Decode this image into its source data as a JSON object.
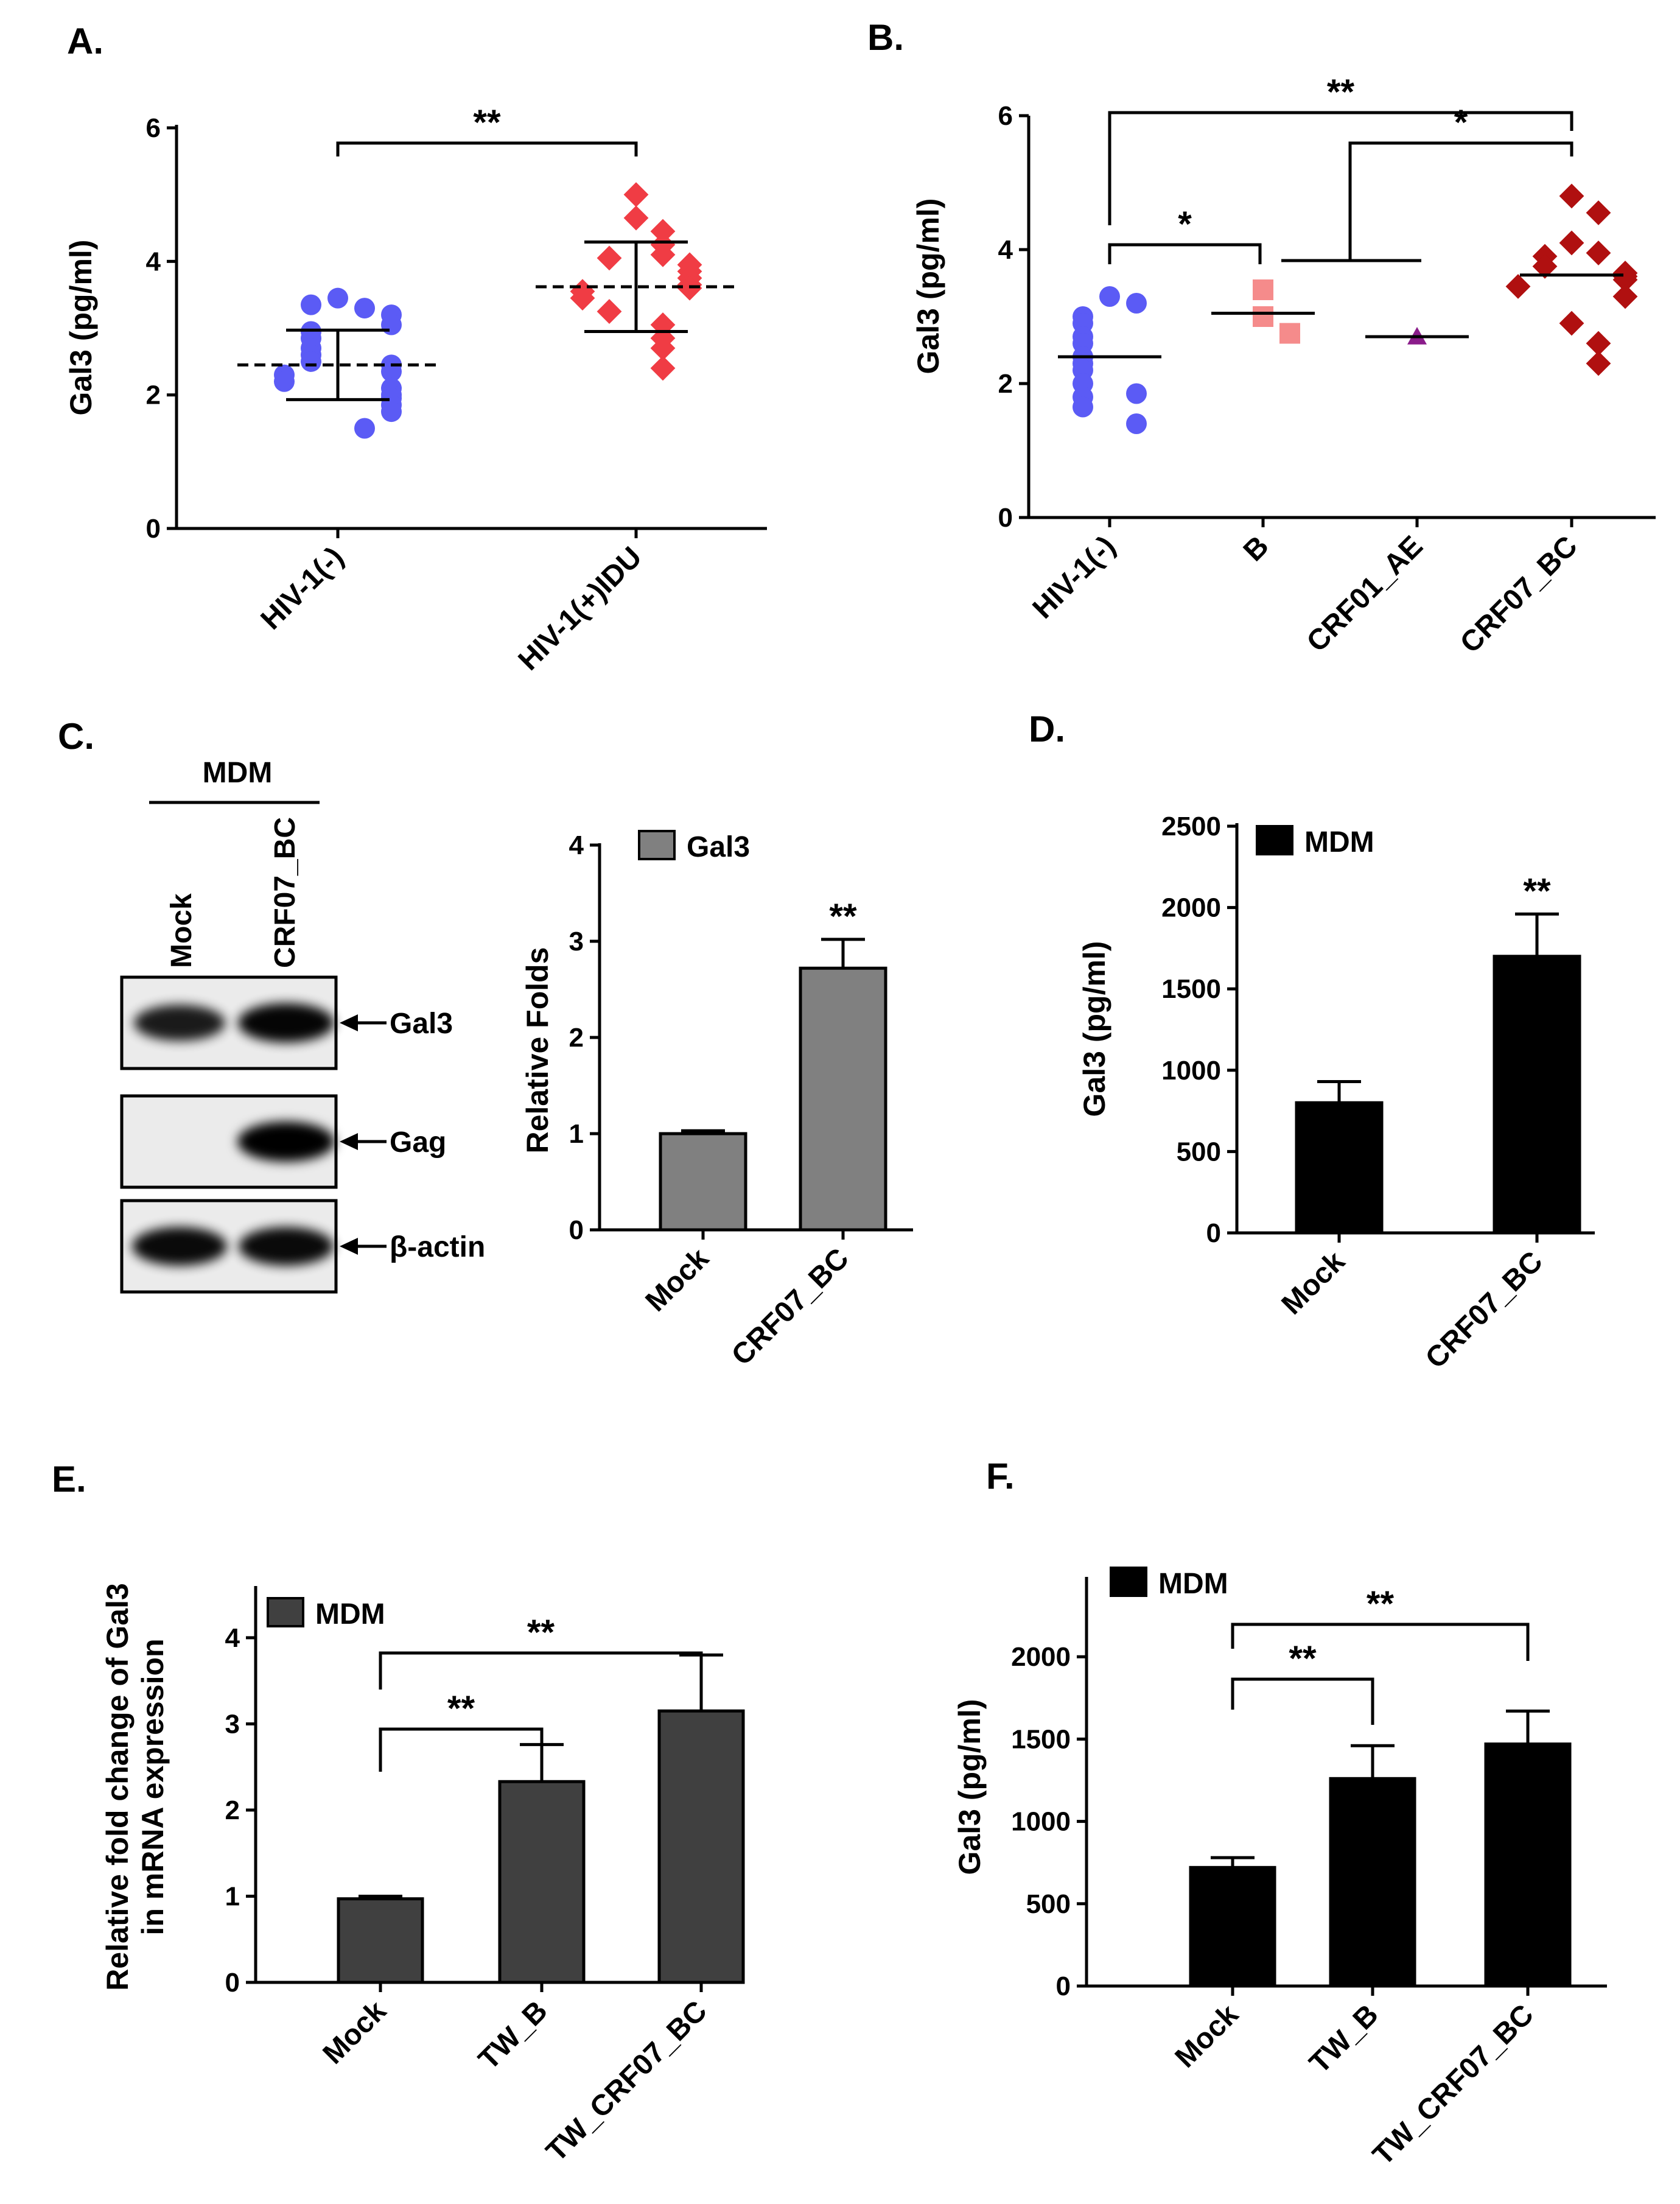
{
  "panel_labels": [
    "A.",
    "B.",
    "C.",
    "D.",
    "E.",
    "F."
  ],
  "chart_data": [
    {
      "id": "A",
      "type": "scatter",
      "ylabel": "Gal3 (pg/ml)",
      "ylim": [
        0,
        6
      ],
      "yticks": [
        0,
        2,
        4,
        6
      ],
      "categories": [
        "HIV-1(-)",
        "HIV-1(+)IDU"
      ],
      "groups": [
        {
          "name": "HIV-1(-)",
          "color": "#5b5bf5",
          "marker": "circle",
          "mean": 2.45,
          "sd": 0.52,
          "values": [
            3.45,
            3.3,
            3.35,
            3.2,
            3.05,
            2.95,
            2.85,
            2.7,
            2.6,
            2.5,
            2.45,
            2.35,
            2.3,
            2.2,
            2.1,
            2.0,
            1.95,
            1.85,
            1.75,
            1.5
          ]
        },
        {
          "name": "HIV-1(+)IDU",
          "color": "#f03c44",
          "marker": "diamond",
          "mean": 3.62,
          "sd": 0.67,
          "values": [
            5.0,
            4.65,
            4.45,
            4.25,
            4.1,
            4.05,
            3.95,
            3.85,
            3.75,
            3.65,
            3.6,
            3.55,
            3.45,
            3.25,
            3.05,
            2.85,
            2.7,
            2.4
          ]
        }
      ],
      "significance": [
        {
          "from": 0,
          "to": 1,
          "label": "**"
        }
      ]
    },
    {
      "id": "B",
      "type": "scatter",
      "ylabel": "Gal3 (pg/ml)",
      "ylim": [
        0,
        6
      ],
      "yticks": [
        0,
        2,
        4,
        6
      ],
      "categories": [
        "HIV-1(-)",
        "B",
        "CRF01_AE",
        "CRF07_BC"
      ],
      "groups": [
        {
          "name": "HIV-1(-)",
          "color": "#5b5bf5",
          "marker": "circle",
          "mean": 2.4,
          "values": [
            3.3,
            3.2,
            3.0,
            2.9,
            2.7,
            2.6,
            2.4,
            2.3,
            2.2,
            2.0,
            1.85,
            1.8,
            1.65,
            1.4
          ]
        },
        {
          "name": "B",
          "color": "#f58b8b",
          "marker": "square",
          "mean": 3.05,
          "values": [
            3.4,
            3.0,
            2.75
          ]
        },
        {
          "name": "CRF01_AE",
          "color": "#8a1c8a",
          "marker": "triangle",
          "mean": 2.7,
          "values": [
            2.7
          ]
        },
        {
          "name": "CRF07_BC",
          "color": "#b01010",
          "marker": "diamond",
          "mean": 3.62,
          "values": [
            4.8,
            4.55,
            4.1,
            3.95,
            3.9,
            3.75,
            3.65,
            3.6,
            3.55,
            3.45,
            3.3,
            2.9,
            2.6,
            2.3
          ]
        }
      ],
      "significance": [
        {
          "from": 0,
          "to": 1,
          "label": "*"
        },
        {
          "from": 0,
          "to": 3,
          "label": "**"
        },
        {
          "from": "1-2",
          "to": 3,
          "label": "*"
        }
      ]
    },
    {
      "id": "C",
      "type": "bar",
      "ylabel": "Relative Folds",
      "ylim": [
        0,
        4
      ],
      "yticks": [
        0,
        1,
        2,
        3,
        4
      ],
      "categories": [
        "Mock",
        "CRF07_BC"
      ],
      "series": [
        {
          "name": "Gal3",
          "color": "#808080",
          "values": [
            1.0,
            2.72
          ],
          "errors": [
            0.03,
            0.3
          ]
        }
      ],
      "significance": [
        {
          "at": 1,
          "label": "**"
        }
      ]
    },
    {
      "id": "D",
      "type": "bar",
      "ylabel": "Gal3 (pg/ml)",
      "ylim": [
        0,
        2500
      ],
      "yticks": [
        0,
        500,
        1000,
        1500,
        2000,
        2500
      ],
      "categories": [
        "Mock",
        "CRF07_BC"
      ],
      "series": [
        {
          "name": "MDM",
          "color": "#000000",
          "values": [
            800,
            1700
          ],
          "errors": [
            130,
            260
          ]
        }
      ],
      "significance": [
        {
          "at": 1,
          "label": "**"
        }
      ]
    },
    {
      "id": "E",
      "type": "bar",
      "ylabel": "Relative fold change of Gal3",
      "ylabel2": "in mRNA expression",
      "ylim": [
        0,
        4.6
      ],
      "yticks": [
        0,
        1,
        2,
        3,
        4
      ],
      "categories": [
        "Mock",
        "TW_B",
        "TW_CRF07_BC"
      ],
      "series": [
        {
          "name": "MDM",
          "color": "#404040",
          "values": [
            0.97,
            2.33,
            3.15
          ],
          "errors": [
            0.03,
            0.43,
            0.65
          ]
        }
      ],
      "significance": [
        {
          "from": 0,
          "to": 1,
          "label": "**"
        },
        {
          "from": 0,
          "to": 2,
          "label": "**"
        }
      ]
    },
    {
      "id": "F",
      "type": "bar",
      "ylabel": "Gal3 (pg/ml)",
      "ylim": [
        0,
        2500
      ],
      "yticks": [
        0,
        500,
        1000,
        1500,
        2000
      ],
      "categories": [
        "Mock",
        "TW_B",
        "TW_CRF07_BC"
      ],
      "series": [
        {
          "name": "MDM",
          "color": "#000000",
          "values": [
            720,
            1260,
            1470
          ],
          "errors": [
            60,
            200,
            200
          ]
        }
      ],
      "significance": [
        {
          "from": 0,
          "to": 1,
          "label": "**"
        },
        {
          "from": 0,
          "to": 2,
          "label": "**"
        }
      ]
    }
  ],
  "western_blot": {
    "title": "MDM",
    "lanes": [
      "Mock",
      "CRF07_BC"
    ],
    "bands": [
      {
        "label": "Gal3",
        "intensity": [
          0.75,
          0.95
        ]
      },
      {
        "label": "Gag",
        "intensity": [
          0.0,
          1.0
        ]
      },
      {
        "label": "β-actin",
        "intensity": [
          0.9,
          0.9
        ]
      }
    ]
  }
}
